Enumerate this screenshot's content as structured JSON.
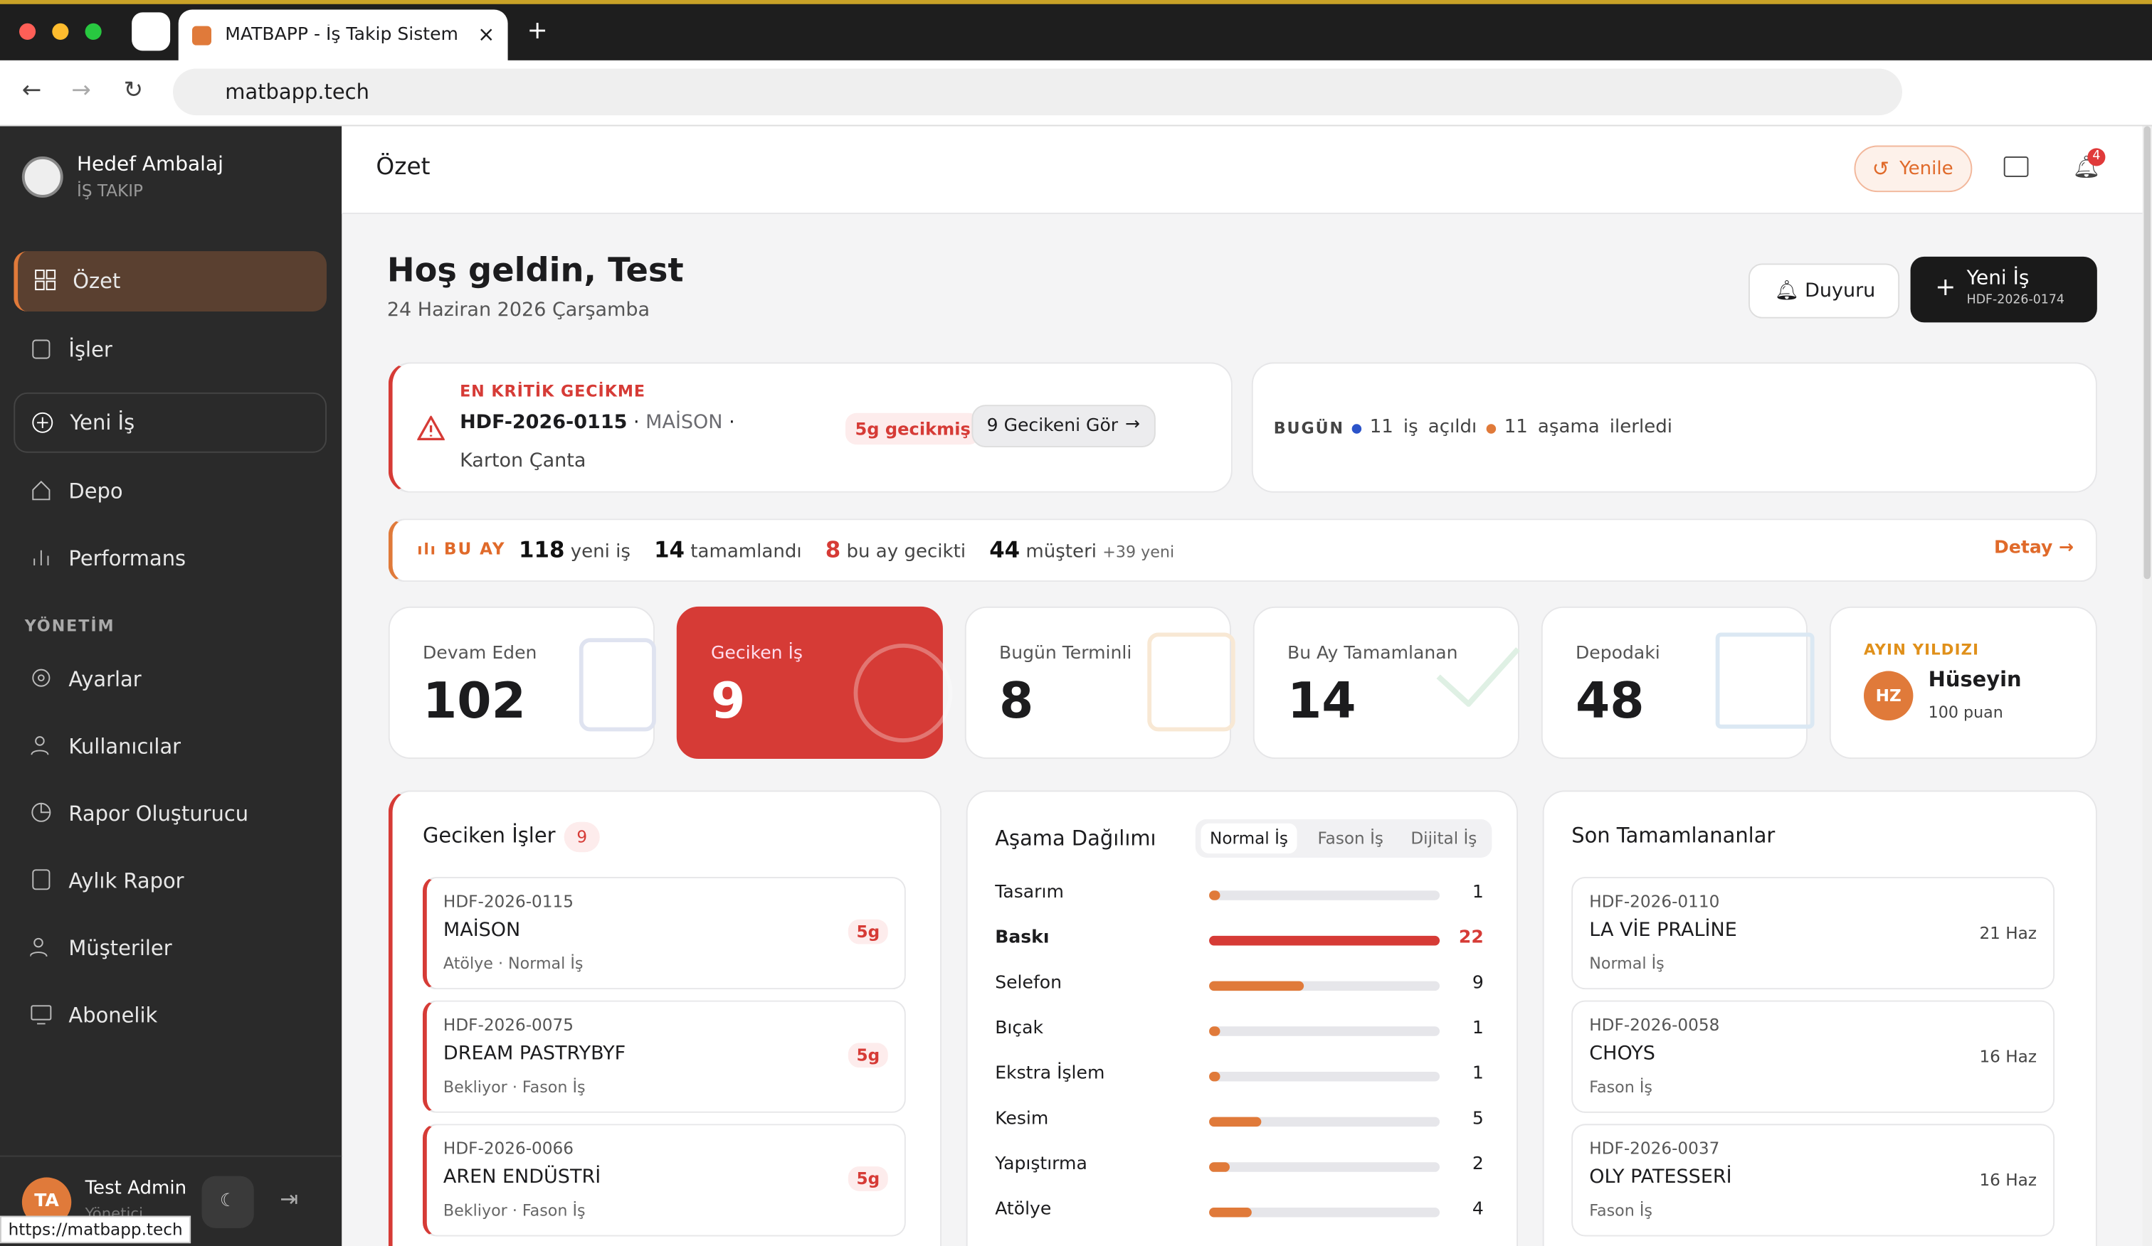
{
  "browser": {
    "tab_title": "MATBAPP - İş Takip Sistemi |",
    "url": "matbapp.tech",
    "status_url": "https://matbapp.tech"
  },
  "sidebar": {
    "company": "Hedef Ambalaj",
    "subtitle": "İŞ TAKIP",
    "nav": [
      "Özet",
      "İşler",
      "Yeni İş",
      "Depo",
      "Performans"
    ],
    "section": "YÖNETİM",
    "admin_nav": [
      "Ayarlar",
      "Kullanıcılar",
      "Rapor Oluşturucu",
      "Aylık Rapor",
      "Müşteriler",
      "Abonelik"
    ],
    "user": {
      "initials": "TA",
      "name": "Test Admin",
      "role": "Yönetici"
    }
  },
  "header": {
    "title": "Özet",
    "refresh": "Yenile",
    "notifications": 4
  },
  "welcome": {
    "title": "Hoş geldin, Test",
    "date": "24 Haziran 2026 Çarşamba",
    "announce": "Duyuru",
    "new_job": "Yeni İş",
    "new_job_code": "HDF-2026-0174"
  },
  "critical": {
    "label": "EN KRİTİK GECİKME",
    "code": "HDF-2026-0115",
    "customer": "MAİSON",
    "product": "Karton Çanta",
    "badge": "5g gecikmiş",
    "button": "9 Gecikeni Gör"
  },
  "today": {
    "label": "BUGÜN",
    "opened": 11,
    "opened_text": "iş açıldı",
    "advanced": 11,
    "advanced_text": "aşama ilerledi"
  },
  "month": {
    "label": "BU AY",
    "new": 118,
    "new_text": "yeni iş",
    "done": 14,
    "done_text": "tamamlandı",
    "late": 8,
    "late_text": "bu ay gecikti",
    "customers": 44,
    "customers_text": "müşteri",
    "customers_new": "+39 yeni",
    "detail": "Detay"
  },
  "stats": [
    {
      "label": "Devam Eden",
      "value": 102
    },
    {
      "label": "Geciken İş",
      "value": 9
    },
    {
      "label": "Bugün Terminli",
      "value": 8
    },
    {
      "label": "Bu Ay Tamamlanan",
      "value": 14
    },
    {
      "label": "Depodaki",
      "value": 48
    }
  ],
  "star": {
    "label": "AYIN YILDIZI",
    "initials": "HZ",
    "name": "Hüseyin",
    "points": "100 puan"
  },
  "late_jobs": {
    "title": "Geciken İşler",
    "count": 9,
    "items": [
      {
        "code": "HDF-2026-0115",
        "customer": "MAİSON",
        "meta": "Atölye · Normal İş",
        "days": "5g"
      },
      {
        "code": "HDF-2026-0075",
        "customer": "DREAM PASTRYBYF",
        "meta": "Bekliyor · Fason İş",
        "days": "5g"
      },
      {
        "code": "HDF-2026-0066",
        "customer": "AREN ENDÜSTRİ",
        "meta": "Bekliyor · Fason İş",
        "days": "5g"
      }
    ]
  },
  "stages": {
    "title": "Aşama Dağılımı",
    "tabs": [
      "Normal İş",
      "Fason İş",
      "Dijital İş"
    ],
    "rows": [
      {
        "name": "Tasarım",
        "value": 1
      },
      {
        "name": "Baskı",
        "value": 22
      },
      {
        "name": "Selefon",
        "value": 9
      },
      {
        "name": "Bıçak",
        "value": 1
      },
      {
        "name": "Ekstra İşlem",
        "value": 1
      },
      {
        "name": "Kesim",
        "value": 5
      },
      {
        "name": "Yapıştırma",
        "value": 2
      },
      {
        "name": "Atölye",
        "value": 4
      }
    ]
  },
  "recent": {
    "title": "Son Tamamlananlar",
    "items": [
      {
        "code": "HDF-2026-0110",
        "customer": "LA VİE PRALİNE",
        "meta": "Normal İş",
        "date": "21 Haz"
      },
      {
        "code": "HDF-2026-0058",
        "customer": "CHOYS",
        "meta": "Fason İş",
        "date": "16 Haz"
      },
      {
        "code": "HDF-2026-0037",
        "customer": "OLY PATESSERİ",
        "meta": "Fason İş",
        "date": "16 Haz"
      }
    ]
  }
}
